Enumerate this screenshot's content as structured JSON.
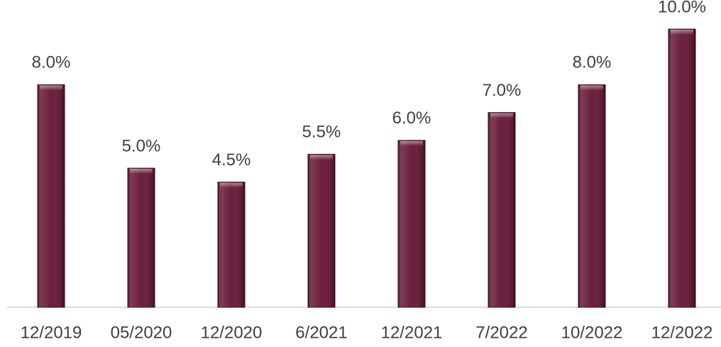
{
  "chart_data": {
    "type": "bar",
    "categories": [
      "12/2019",
      "05/2020",
      "12/2020",
      "6/2021",
      "12/2021",
      "7/2022",
      "10/2022",
      "12/2022"
    ],
    "values": [
      8,
      5,
      4.5,
      5.5,
      6,
      7,
      8,
      10
    ],
    "value_labels": [
      "8.0%",
      "5.0%",
      "4.5%",
      "5.5%",
      "6.0%",
      "7.0%",
      "8.0%",
      "10.0%"
    ],
    "color": "#6b1f3c"
  }
}
